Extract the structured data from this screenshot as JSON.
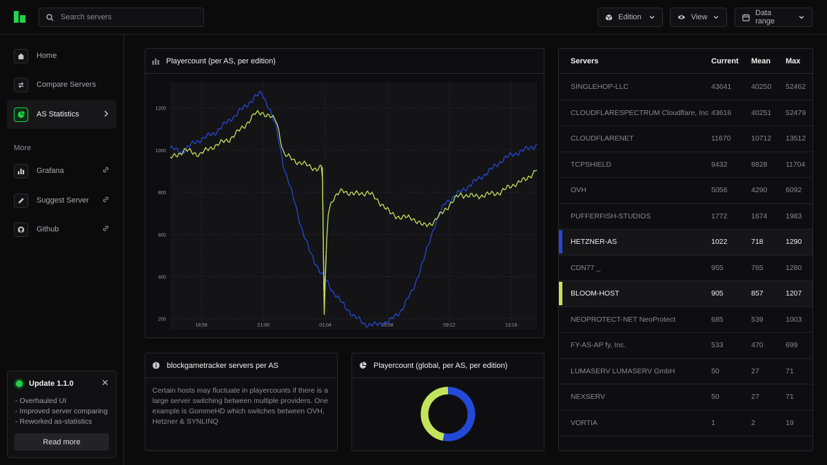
{
  "search": {
    "placeholder": "Search servers"
  },
  "header": {
    "edition_label": "Edition",
    "view_label": "View",
    "data_range_label": "Data range"
  },
  "sidebar": {
    "items": [
      {
        "label": "Home",
        "icon": "home-icon"
      },
      {
        "label": "Compare Servers",
        "icon": "compare-icon"
      },
      {
        "label": "AS Statistics",
        "icon": "pie-chart-icon",
        "active": true
      }
    ],
    "more_label": "More",
    "more_items": [
      {
        "label": "Grafana",
        "icon": "bar-chart-icon"
      },
      {
        "label": "Suggest Server",
        "icon": "pencil-icon"
      },
      {
        "label": "Github",
        "icon": "github-icon"
      }
    ]
  },
  "update": {
    "title": "Update 1.1.0",
    "notes": [
      "- Overhauled UI",
      "- Improved server comparing",
      "- Reworked as-statistics"
    ],
    "read_more": "Read more"
  },
  "main_chart": {
    "title": "Playercount (per AS, per edition)"
  },
  "info_panel": {
    "title": "blockgametracker servers per AS",
    "text": "Certain hosts may fluctuate in playercounts if there is a large server switching between multiple providers. One example is GommeHD which switches between OVH, Hetzner & SYNLINQ"
  },
  "donut_panel": {
    "title": "Playercount (global, per AS, per edition)"
  },
  "colors": {
    "accent": "#22d24a",
    "hetzner": "#2448d8",
    "bloom": "#c4e35c"
  },
  "table": {
    "headers": [
      "Servers",
      "Current",
      "Mean",
      "Max"
    ],
    "rows": [
      {
        "name": "SINGLEHOP-LLC",
        "current": "43641",
        "mean": "40250",
        "max": "52462"
      },
      {
        "name": "CLOUDFLARESPECTRUM Cloudflare, Inc.",
        "current": "43616",
        "mean": "40251",
        "max": "52479"
      },
      {
        "name": "CLOUDFLARENET",
        "current": "11670",
        "mean": "10712",
        "max": "13512"
      },
      {
        "name": "TCPSHIELD",
        "current": "9432",
        "mean": "8828",
        "max": "11704"
      },
      {
        "name": "OVH",
        "current": "5056",
        "mean": "4290",
        "max": "6092"
      },
      {
        "name": "PUFFERFISH-STUDIOS",
        "current": "1772",
        "mean": "1674",
        "max": "1983"
      },
      {
        "name": "HETZNER-AS",
        "current": "1022",
        "mean": "718",
        "max": "1290",
        "highlight": "#2448d8"
      },
      {
        "name": "CDN77 _",
        "current": "955",
        "mean": "765",
        "max": "1280"
      },
      {
        "name": "BLOOM-HOST",
        "current": "905",
        "mean": "857",
        "max": "1207",
        "highlight": "#c4e35c"
      },
      {
        "name": "NEOPROTECT-NET NeoProtect",
        "current": "685",
        "mean": "539",
        "max": "1003"
      },
      {
        "name": "FY-AS-AP fy, Inc.",
        "current": "533",
        "mean": "470",
        "max": "699"
      },
      {
        "name": "LUMASERV LUMASERV GmbH",
        "current": "50",
        "mean": "27",
        "max": "71"
      },
      {
        "name": "NEXSERV",
        "current": "50",
        "mean": "27",
        "max": "71"
      },
      {
        "name": "VORTIA",
        "current": "1",
        "mean": "2",
        "max": "19"
      }
    ]
  },
  "chart_data": [
    {
      "type": "line",
      "ylim": [
        150,
        1320
      ],
      "y_ticks": [
        200,
        400,
        600,
        800,
        1000,
        1200
      ],
      "x_ticks": [
        "16:56",
        "21:00",
        "01:04",
        "05:08",
        "09:12",
        "13:16"
      ],
      "grid": true,
      "series": [
        {
          "color": "#2448d8",
          "x": [
            0,
            0.03,
            0.07,
            0.12,
            0.16,
            0.2,
            0.23,
            0.25,
            0.27,
            0.29,
            0.31,
            0.34,
            0.36,
            0.38,
            0.41,
            0.44,
            0.47,
            0.5,
            0.53,
            0.56,
            0.6,
            0.63,
            0.66,
            0.69,
            0.72,
            0.75,
            0.79,
            0.83,
            0.87,
            0.91,
            0.95,
            0.98,
            1.0
          ],
          "y": [
            1010,
            990,
            1040,
            1080,
            1140,
            1200,
            1250,
            1270,
            1200,
            1100,
            920,
            750,
            620,
            520,
            420,
            340,
            270,
            215,
            175,
            170,
            190,
            240,
            330,
            470,
            640,
            750,
            800,
            850,
            900,
            960,
            990,
            1010,
            1025
          ]
        },
        {
          "color": "#c4e35c",
          "x": [
            0,
            0.04,
            0.08,
            0.12,
            0.16,
            0.2,
            0.23,
            0.25,
            0.27,
            0.29,
            0.31,
            0.34,
            0.37,
            0.4,
            0.415,
            0.42,
            0.425,
            0.43,
            0.44,
            0.47,
            0.5,
            0.54,
            0.58,
            0.6,
            0.63,
            0.66,
            0.69,
            0.72,
            0.75,
            0.79,
            0.83,
            0.87,
            0.9,
            0.94,
            0.97,
            1.0
          ],
          "y": [
            960,
            1000,
            980,
            1020,
            1050,
            1110,
            1170,
            1180,
            1160,
            1140,
            980,
            950,
            930,
            910,
            920,
            220,
            500,
            700,
            760,
            810,
            790,
            800,
            740,
            700,
            680,
            680,
            640,
            660,
            720,
            790,
            780,
            790,
            800,
            840,
            860,
            910
          ]
        }
      ]
    },
    {
      "type": "pie",
      "slices": [
        {
          "name": "HETZNER-AS",
          "value": 1022,
          "color": "#2448d8"
        },
        {
          "name": "BLOOM-HOST",
          "value": 905,
          "color": "#c4e35c"
        }
      ]
    }
  ]
}
